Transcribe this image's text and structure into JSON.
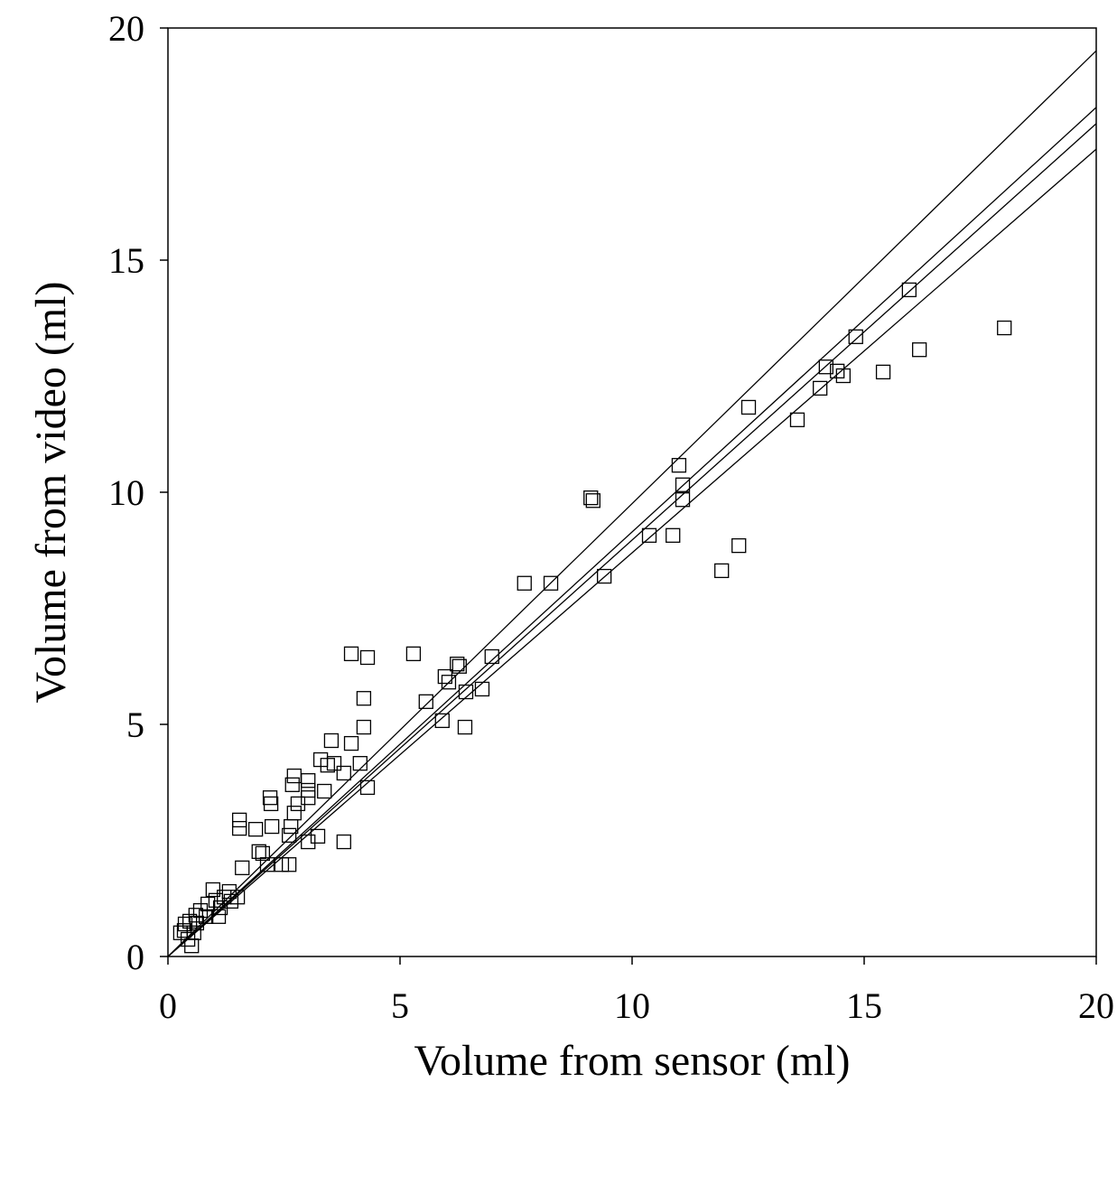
{
  "chart_data": {
    "type": "scatter",
    "x_label": "Volume from sensor (ml)",
    "y_label": "Volume from video (ml)",
    "xlim": [
      0,
      20
    ],
    "ylim": [
      0,
      20
    ],
    "xticks": [
      0,
      5,
      10,
      15,
      20
    ],
    "yticks": [
      0,
      5,
      10,
      15,
      20
    ],
    "color": "#000000",
    "x": [
      18.02,
      15.97,
      14.82,
      16.19,
      15.41,
      14.18,
      14.42,
      14.55,
      14.05,
      13.56,
      12.51,
      11.01,
      11.09,
      11.09,
      9.11,
      9.16,
      10.37,
      10.88,
      12.3,
      11.93,
      9.4,
      7.68,
      8.25,
      6.98,
      5.29,
      3.95,
      4.3,
      6.23,
      6.28,
      5.97,
      6.05,
      6.42,
      6.77,
      5.56,
      4.22,
      5.91,
      6.4,
      4.22,
      3.52,
      3.95,
      3.29,
      3.44,
      3.58,
      4.14,
      3.79,
      2.72,
      3.02,
      2.68,
      3.02,
      3.37,
      4.3,
      3.02,
      2.2,
      2.22,
      2.8,
      2.72,
      1.54,
      1.54,
      2.24,
      1.89,
      2.65,
      2.61,
      3.23,
      3.02,
      3.79,
      1.96,
      2.04,
      2.14,
      2.45,
      2.61,
      1.6,
      1.5,
      1.32,
      1.21,
      0.97,
      1.03,
      0.86,
      0.7,
      0.6,
      0.47,
      0.37,
      0.27,
      0.43,
      0.51,
      0.35,
      0.62,
      0.82,
      1.13,
      1.36,
      1.09,
      0.56
    ],
    "y": [
      13.54,
      14.36,
      13.35,
      13.07,
      12.59,
      12.7,
      12.61,
      12.51,
      12.24,
      11.56,
      11.83,
      10.58,
      10.16,
      9.84,
      9.88,
      9.82,
      9.07,
      9.07,
      8.85,
      8.31,
      8.19,
      8.04,
      8.04,
      6.46,
      6.52,
      6.52,
      6.44,
      6.3,
      6.25,
      6.03,
      5.91,
      5.7,
      5.76,
      5.49,
      5.56,
      5.08,
      4.94,
      4.94,
      4.65,
      4.59,
      4.24,
      4.12,
      4.16,
      4.16,
      3.95,
      3.89,
      3.79,
      3.7,
      3.58,
      3.56,
      3.64,
      3.42,
      3.42,
      3.29,
      3.29,
      3.09,
      2.94,
      2.76,
      2.8,
      2.74,
      2.8,
      2.61,
      2.59,
      2.47,
      2.47,
      2.26,
      2.22,
      1.98,
      1.98,
      1.98,
      1.91,
      1.28,
      1.4,
      1.28,
      1.44,
      1.21,
      1.13,
      0.99,
      0.89,
      0.76,
      0.7,
      0.51,
      0.37,
      0.23,
      0.56,
      0.72,
      0.86,
      1.05,
      1.19,
      0.86,
      0.51
    ],
    "lines": [
      {
        "x": [
          0,
          20
        ],
        "y": [
          0,
          19.51
        ]
      },
      {
        "x": [
          0,
          20
        ],
        "y": [
          0,
          18.29
        ]
      },
      {
        "x": [
          0,
          20
        ],
        "y": [
          0,
          17.94
        ]
      },
      {
        "x": [
          0,
          20
        ],
        "y": [
          0,
          17.39
        ]
      }
    ]
  }
}
